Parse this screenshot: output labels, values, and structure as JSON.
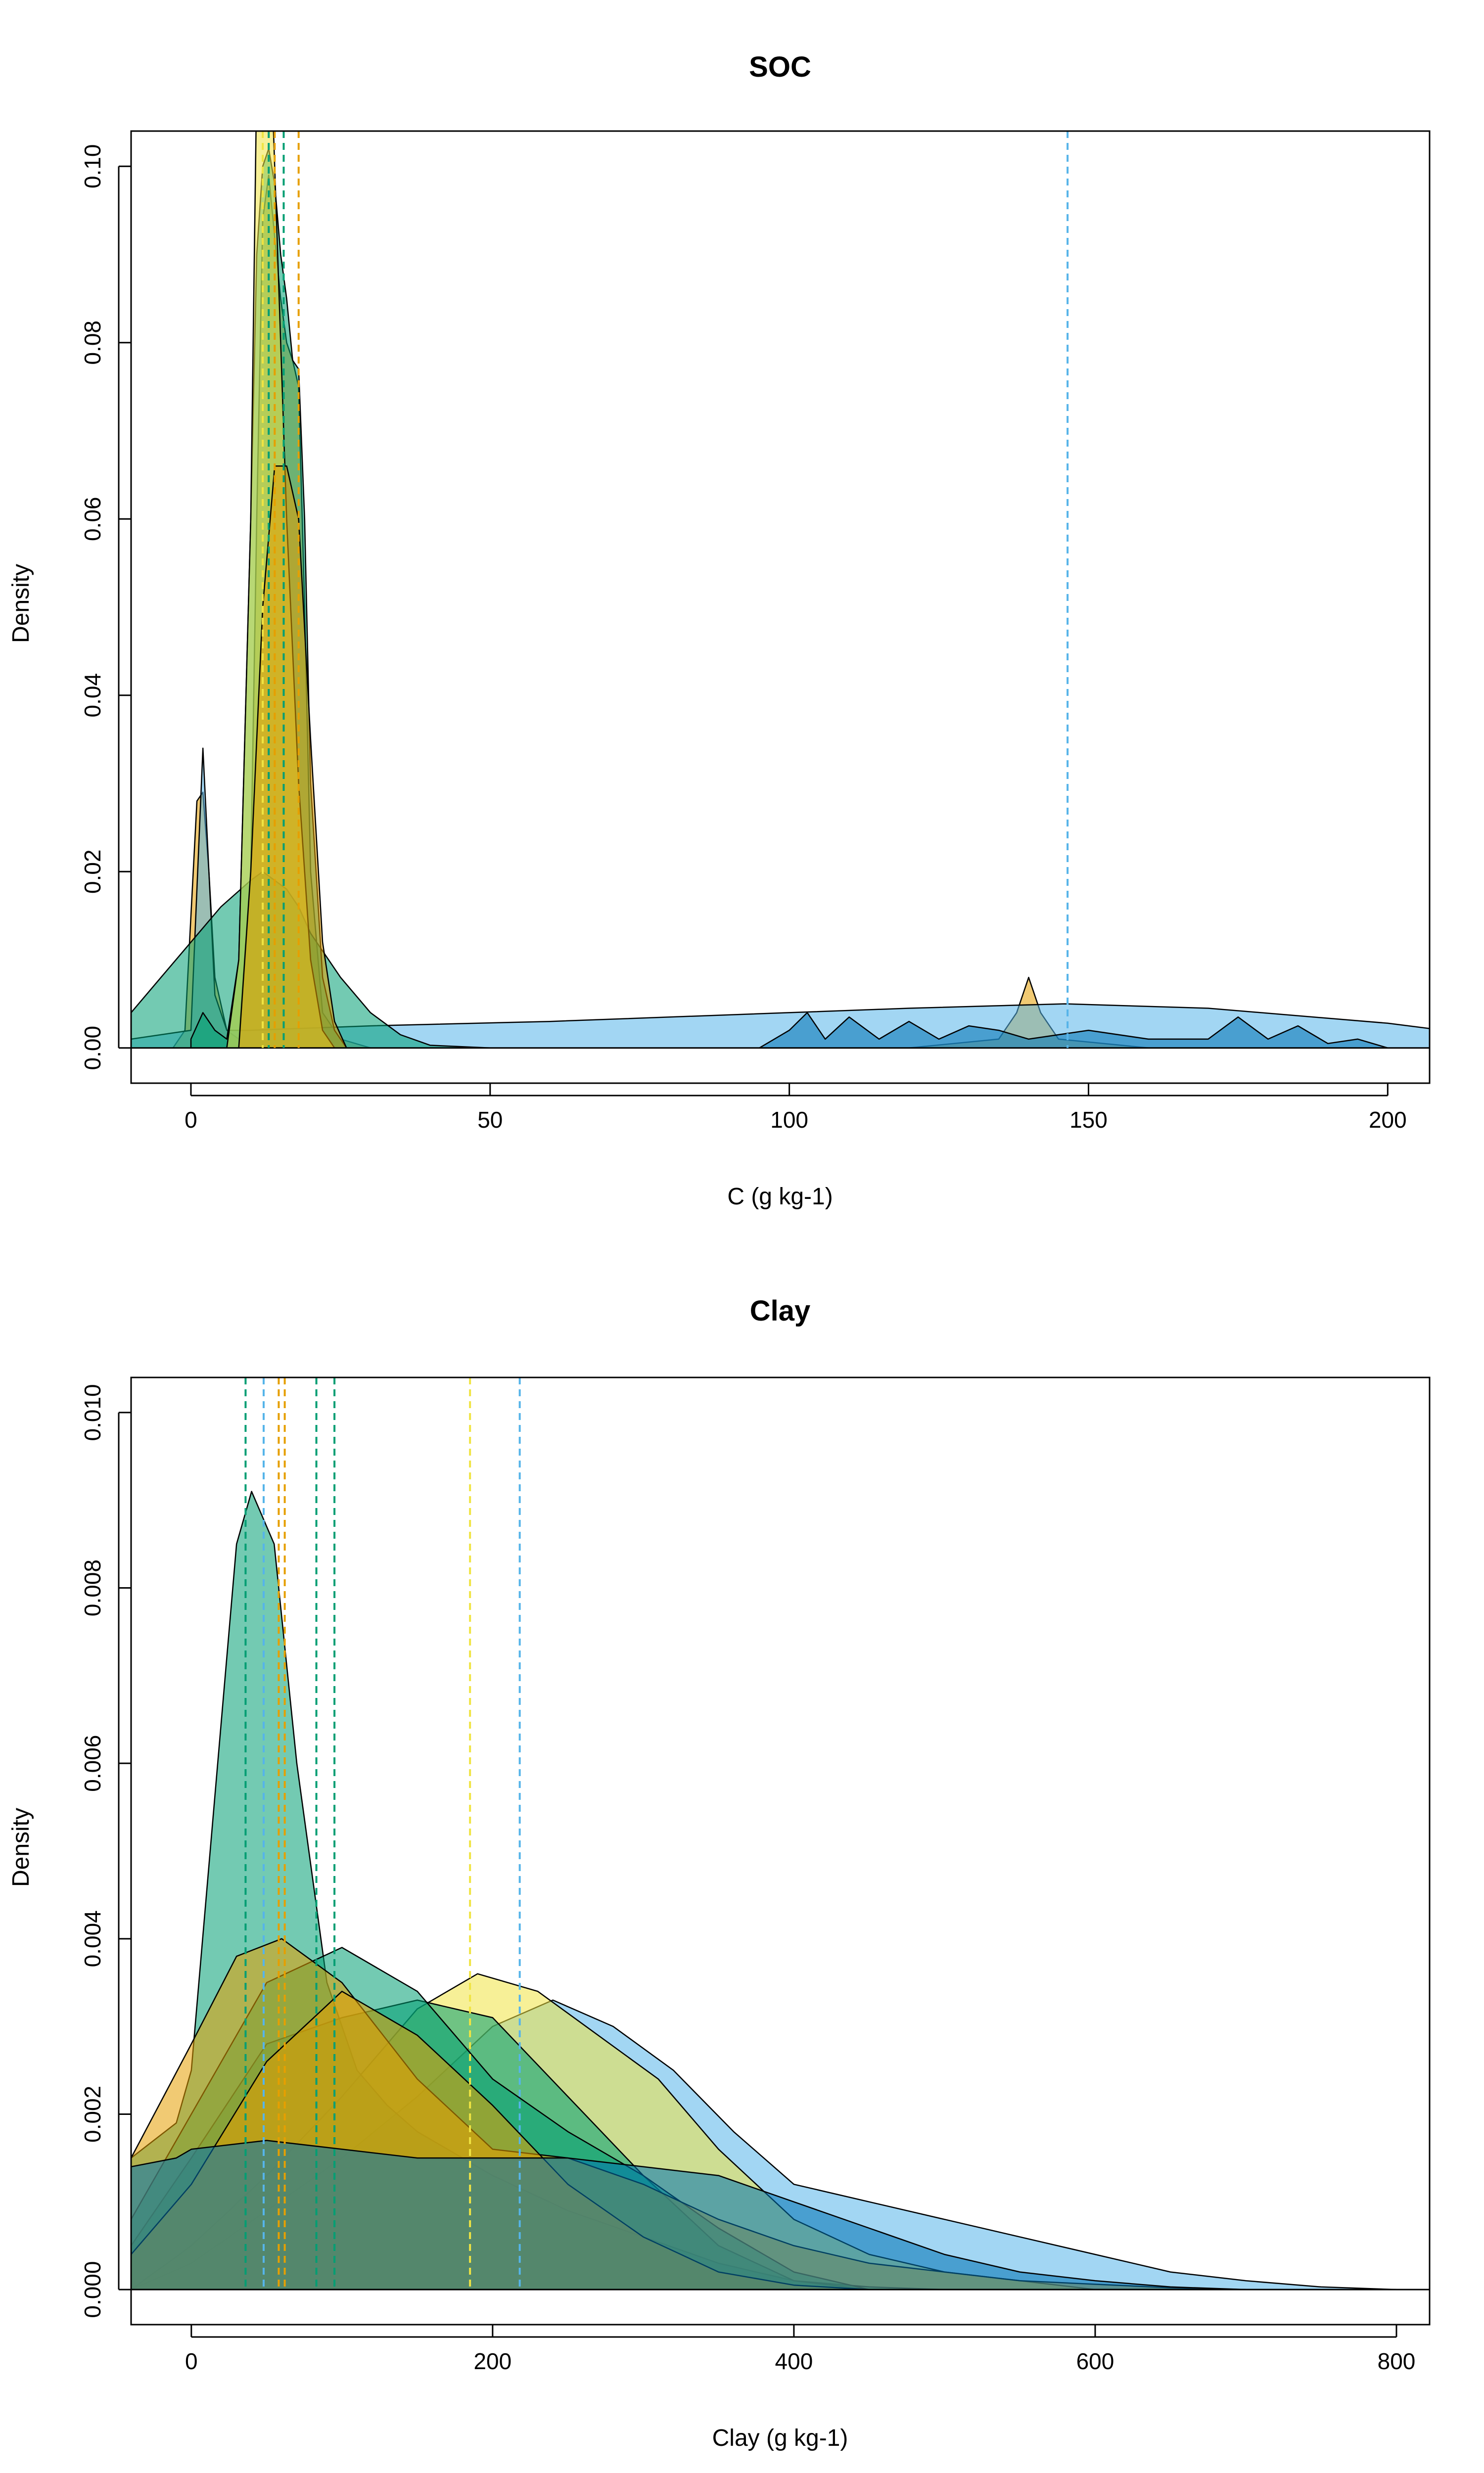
{
  "chart_data": [
    {
      "type": "area",
      "title": "SOC",
      "xlabel": "C (g kg-1)",
      "ylabel": "Density",
      "xlim": [
        -10,
        207
      ],
      "ylim": [
        -0.004,
        0.104
      ],
      "xticks": [
        0,
        50,
        100,
        150,
        200
      ],
      "yticks": [
        0.0,
        0.02,
        0.04,
        0.06,
        0.08,
        0.1
      ],
      "ytick_labels": [
        "0.00",
        "0.02",
        "0.04",
        "0.06",
        "0.08",
        "0.10"
      ],
      "grid": false,
      "series": [
        {
          "color": "#E69F00",
          "x": [
            -3,
            -1,
            0,
            1,
            2,
            3,
            4,
            6,
            8,
            10,
            11,
            12,
            13,
            14,
            15,
            16,
            17,
            18,
            19,
            20,
            22,
            25,
            30,
            60,
            100,
            120,
            135,
            138,
            140,
            142,
            145,
            160,
            200,
            207
          ],
          "y": [
            0,
            0.002,
            0.015,
            0.028,
            0.029,
            0.02,
            0.008,
            0.002,
            0.001,
            0.02,
            0.06,
            0.094,
            0.099,
            0.092,
            0.085,
            0.08,
            0.078,
            0.075,
            0.05,
            0.02,
            0.004,
            0.001,
            0,
            0,
            0,
            0,
            0.001,
            0.004,
            0.008,
            0.004,
            0.001,
            0,
            0,
            0
          ]
        },
        {
          "color": "#56B4E9",
          "x": [
            -10,
            0,
            1,
            2,
            3,
            4,
            6,
            10,
            30,
            60,
            100,
            120,
            146,
            170,
            200,
            207
          ],
          "y": [
            0.001,
            0.002,
            0.018,
            0.034,
            0.02,
            0.006,
            0.002,
            0.002,
            0.0025,
            0.003,
            0.004,
            0.0045,
            0.005,
            0.0045,
            0.0028,
            0.0022
          ]
        },
        {
          "color": "#009E73",
          "x": [
            -10,
            -5,
            0,
            5,
            10,
            12,
            14,
            16,
            18,
            20,
            25,
            30,
            35,
            40,
            50
          ],
          "y": [
            0.004,
            0.008,
            0.012,
            0.016,
            0.019,
            0.02,
            0.019,
            0.018,
            0.016,
            0.013,
            0.008,
            0.004,
            0.0015,
            0.0003,
            0
          ]
        },
        {
          "color": "#009E73",
          "x": [
            0,
            2,
            4,
            6,
            8,
            10,
            11,
            12,
            13,
            14,
            15,
            16,
            17,
            18,
            19,
            20,
            22,
            24,
            26
          ],
          "y": [
            0.001,
            0.004,
            0.002,
            0.001,
            0.01,
            0.06,
            0.09,
            0.1,
            0.102,
            0.098,
            0.09,
            0.085,
            0.078,
            0.077,
            0.06,
            0.03,
            0.008,
            0.002,
            0
          ]
        },
        {
          "color": "#F0E442",
          "x": [
            6,
            8,
            10,
            11,
            12,
            13,
            14,
            15,
            16,
            18,
            20,
            22,
            24
          ],
          "y": [
            0,
            0.01,
            0.06,
            0.11,
            0.13,
            0.12,
            0.1,
            0.08,
            0.06,
            0.03,
            0.01,
            0.002,
            0
          ]
        },
        {
          "color": "#E69F00",
          "x": [
            8,
            10,
            12,
            14,
            16,
            18,
            20,
            22,
            24,
            26
          ],
          "y": [
            0,
            0.02,
            0.05,
            0.066,
            0.066,
            0.06,
            0.035,
            0.012,
            0.003,
            0
          ]
        },
        {
          "color": "#0072B2",
          "x": [
            95,
            100,
            103,
            106,
            110,
            115,
            120,
            125,
            130,
            135,
            140,
            150,
            160,
            170,
            175,
            180,
            185,
            190,
            195,
            200
          ],
          "y": [
            0,
            0.002,
            0.004,
            0.001,
            0.0035,
            0.001,
            0.003,
            0.001,
            0.0025,
            0.002,
            0.001,
            0.002,
            0.001,
            0.001,
            0.0035,
            0.001,
            0.0025,
            0.0005,
            0.001,
            0
          ]
        }
      ],
      "vlines": [
        {
          "x": 12,
          "color": "#F0E442"
        },
        {
          "x": 13,
          "color": "#009E73"
        },
        {
          "x": 14,
          "color": "#E69F00"
        },
        {
          "x": 15.5,
          "color": "#009E73"
        },
        {
          "x": 18,
          "color": "#E69F00"
        },
        {
          "x": 146.5,
          "color": "#56B4E9"
        }
      ]
    },
    {
      "type": "area",
      "title": "Clay",
      "xlabel": "Clay (g kg-1)",
      "ylabel": "Density",
      "xlim": [
        -40,
        822
      ],
      "ylim": [
        -0.0004,
        0.0104
      ],
      "xticks": [
        0,
        200,
        400,
        600,
        800
      ],
      "yticks": [
        0.0,
        0.002,
        0.004,
        0.006,
        0.008,
        0.01
      ],
      "ytick_labels": [
        "0.000",
        "0.002",
        "0.004",
        "0.006",
        "0.008",
        "0.010"
      ],
      "grid": false,
      "series": [
        {
          "color": "#56B4E9",
          "x": [
            -40,
            0,
            100,
            150,
            200,
            240,
            280,
            320,
            360,
            400,
            450,
            500,
            550,
            600,
            650,
            700,
            750,
            800
          ],
          "y": [
            0,
            0.0003,
            0.0015,
            0.0022,
            0.003,
            0.0033,
            0.003,
            0.0025,
            0.0018,
            0.0012,
            0.001,
            0.0008,
            0.0006,
            0.0004,
            0.0002,
            0.0001,
            3e-05,
            0
          ]
        },
        {
          "color": "#F0E442",
          "x": [
            -40,
            0,
            50,
            100,
            150,
            190,
            230,
            270,
            310,
            350,
            400,
            450,
            500,
            550,
            600
          ],
          "y": [
            0,
            0.0005,
            0.0013,
            0.0022,
            0.0032,
            0.0036,
            0.0034,
            0.0029,
            0.0024,
            0.0016,
            0.0008,
            0.0004,
            0.0002,
            0.0001,
            0
          ]
        },
        {
          "color": "#009E73",
          "x": [
            -40,
            -10,
            0,
            20,
            30,
            40,
            55,
            70,
            90,
            110,
            130,
            150,
            200,
            250,
            300,
            350,
            400,
            450,
            500
          ],
          "y": [
            0.0015,
            0.0019,
            0.0025,
            0.0065,
            0.0085,
            0.0091,
            0.0085,
            0.006,
            0.0035,
            0.0025,
            0.0021,
            0.0018,
            0.0013,
            0.0009,
            0.0006,
            0.0003,
            0.0001,
            3e-05,
            0
          ]
        },
        {
          "color": "#009E73",
          "x": [
            -40,
            0,
            50,
            100,
            150,
            200,
            250,
            300,
            350,
            400,
            450
          ],
          "y": [
            0.0005,
            0.0015,
            0.0028,
            0.0031,
            0.0033,
            0.0031,
            0.0022,
            0.0013,
            0.0005,
            0.0001,
            0
          ]
        },
        {
          "color": "#009E73",
          "x": [
            -40,
            0,
            50,
            100,
            150,
            200,
            250,
            300,
            350,
            400,
            450
          ],
          "y": [
            0.0008,
            0.002,
            0.0035,
            0.0039,
            0.0034,
            0.0024,
            0.0018,
            0.0013,
            0.0007,
            0.0002,
            0
          ]
        },
        {
          "color": "#E69F00",
          "x": [
            -40,
            0,
            30,
            60,
            100,
            150,
            200,
            250,
            300,
            350,
            400,
            450,
            500,
            550,
            600,
            650,
            700
          ],
          "y": [
            0.0015,
            0.0028,
            0.0038,
            0.004,
            0.0035,
            0.0024,
            0.0016,
            0.0015,
            0.0012,
            0.0008,
            0.0005,
            0.0003,
            0.0002,
            0.0001,
            6e-05,
            2e-05,
            0
          ]
        },
        {
          "color": "#E69F00",
          "x": [
            -40,
            0,
            50,
            100,
            150,
            200,
            250,
            300,
            350,
            400,
            450
          ],
          "y": [
            0.0004,
            0.0012,
            0.0026,
            0.0034,
            0.0029,
            0.0021,
            0.0012,
            0.0006,
            0.0002,
            5e-05,
            0
          ]
        },
        {
          "color": "#0072B2",
          "x": [
            -40,
            -10,
            0,
            50,
            100,
            150,
            200,
            250,
            300,
            350,
            400,
            450,
            500,
            550,
            600,
            650,
            700
          ],
          "y": [
            0.0014,
            0.0015,
            0.0016,
            0.0017,
            0.0016,
            0.0015,
            0.0015,
            0.0015,
            0.0014,
            0.0013,
            0.001,
            0.0007,
            0.0004,
            0.0002,
            0.0001,
            3e-05,
            0
          ]
        }
      ],
      "vlines": [
        {
          "x": 36,
          "color": "#009E73"
        },
        {
          "x": 48,
          "color": "#56B4E9"
        },
        {
          "x": 58,
          "color": "#E69F00"
        },
        {
          "x": 62,
          "color": "#E69F00"
        },
        {
          "x": 83,
          "color": "#009E73"
        },
        {
          "x": 95,
          "color": "#009E73"
        },
        {
          "x": 185,
          "color": "#F0E442"
        },
        {
          "x": 218,
          "color": "#56B4E9"
        }
      ]
    }
  ]
}
